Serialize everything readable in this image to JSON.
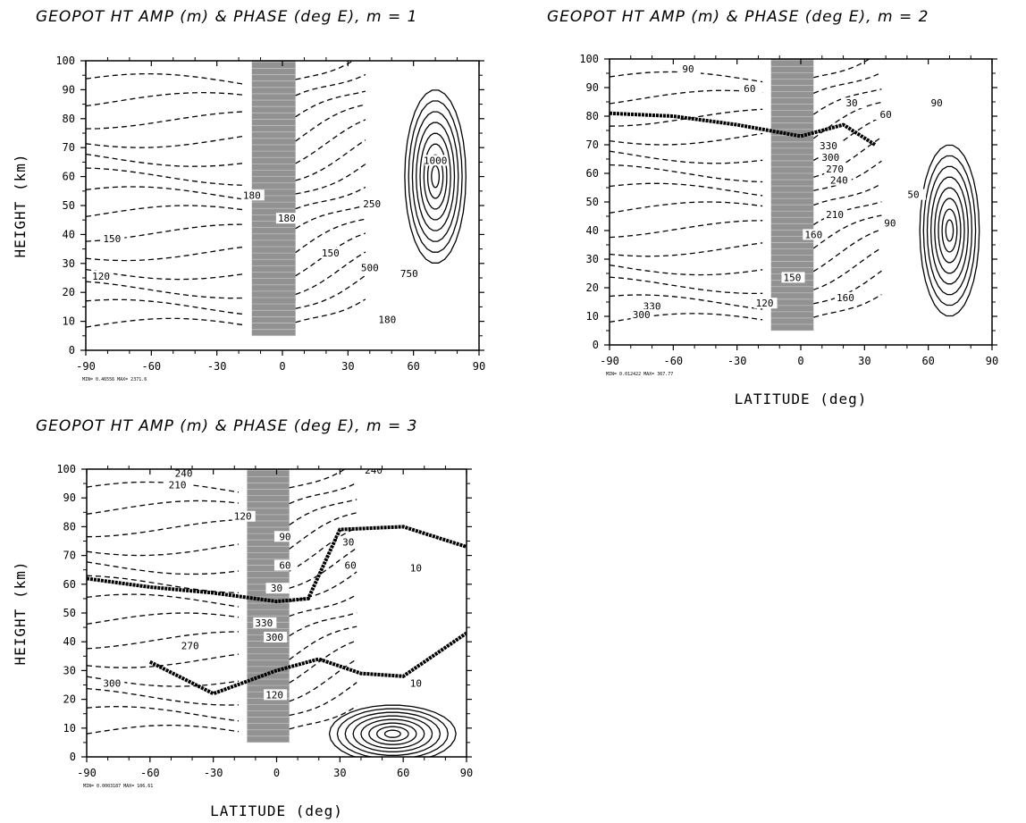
{
  "chart_data": [
    {
      "type": "contour",
      "title": "GEOPOT HT AMP (m) & PHASE (deg E), m = 1",
      "xlabel": "",
      "ylabel": "HEIGHT (km)",
      "xticks": [
        "-90",
        "-60",
        "-30",
        "0",
        "30",
        "60",
        "90"
      ],
      "yticks": [
        "0",
        "10",
        "20",
        "30",
        "40",
        "50",
        "60",
        "70",
        "80",
        "90",
        "100"
      ],
      "xlim": [
        -90,
        90
      ],
      "ylim": [
        0,
        100
      ],
      "minmax_note": "MIN= 0.46556 MAX= 2371.6",
      "contour_labels": [
        {
          "text": "180",
          "x": -14,
          "y": 53
        },
        {
          "text": "180",
          "x": 2,
          "y": 45
        },
        {
          "text": "150",
          "x": -78,
          "y": 38
        },
        {
          "text": "120",
          "x": -83,
          "y": 25
        },
        {
          "text": "150",
          "x": 22,
          "y": 33
        },
        {
          "text": "250",
          "x": 41,
          "y": 50
        },
        {
          "text": "500",
          "x": 40,
          "y": 28
        },
        {
          "text": "750",
          "x": 58,
          "y": 26
        },
        {
          "text": "1000",
          "x": 70,
          "y": 65
        },
        {
          "text": "180",
          "x": 48,
          "y": 10
        }
      ]
    },
    {
      "type": "contour",
      "title": "GEOPOT HT AMP (m) & PHASE (deg E), m = 2",
      "xlabel": "LATITUDE (deg)",
      "ylabel": "",
      "xticks": [
        "-90",
        "-60",
        "-30",
        "0",
        "30",
        "60",
        "90"
      ],
      "yticks": [
        "0",
        "10",
        "20",
        "30",
        "40",
        "50",
        "60",
        "70",
        "80",
        "90",
        "100"
      ],
      "xlim": [
        -90,
        90
      ],
      "ylim": [
        0,
        100
      ],
      "minmax_note": "MIN= 0.012422 MAX= 367.77",
      "contour_labels": [
        {
          "text": "90",
          "x": -53,
          "y": 96
        },
        {
          "text": "60",
          "x": -24,
          "y": 89
        },
        {
          "text": "30",
          "x": 24,
          "y": 84
        },
        {
          "text": "60",
          "x": 40,
          "y": 80
        },
        {
          "text": "90",
          "x": 64,
          "y": 84
        },
        {
          "text": "330",
          "x": 13,
          "y": 69
        },
        {
          "text": "300",
          "x": 14,
          "y": 65
        },
        {
          "text": "270",
          "x": 16,
          "y": 61
        },
        {
          "text": "240",
          "x": 18,
          "y": 57
        },
        {
          "text": "210",
          "x": 16,
          "y": 45
        },
        {
          "text": "160",
          "x": 6,
          "y": 38
        },
        {
          "text": "150",
          "x": -4,
          "y": 23
        },
        {
          "text": "120",
          "x": -17,
          "y": 14
        },
        {
          "text": "50",
          "x": 53,
          "y": 52
        },
        {
          "text": "90",
          "x": 42,
          "y": 42
        },
        {
          "text": "160",
          "x": 21,
          "y": 16
        },
        {
          "text": "330",
          "x": -70,
          "y": 13
        },
        {
          "text": "300",
          "x": -75,
          "y": 10
        }
      ]
    },
    {
      "type": "contour",
      "title": "GEOPOT HT AMP (m) & PHASE (deg E), m = 3",
      "xlabel": "LATITUDE (deg)",
      "ylabel": "HEIGHT (km)",
      "xticks": [
        "-90",
        "-60",
        "-30",
        "0",
        "30",
        "60",
        "90"
      ],
      "yticks": [
        "0",
        "10",
        "20",
        "30",
        "40",
        "50",
        "60",
        "70",
        "80",
        "90",
        "100"
      ],
      "xlim": [
        -90,
        90
      ],
      "ylim": [
        0,
        100
      ],
      "minmax_note": "MIN= 0.0003187 MAX= 106.61",
      "contour_labels": [
        {
          "text": "240",
          "x": -44,
          "y": 98
        },
        {
          "text": "210",
          "x": -47,
          "y": 94
        },
        {
          "text": "120",
          "x": -16,
          "y": 83
        },
        {
          "text": "90",
          "x": 4,
          "y": 76
        },
        {
          "text": "60",
          "x": 4,
          "y": 66
        },
        {
          "text": "30",
          "x": 0,
          "y": 58
        },
        {
          "text": "330",
          "x": -6,
          "y": 46
        },
        {
          "text": "300",
          "x": -1,
          "y": 41
        },
        {
          "text": "270",
          "x": -41,
          "y": 38
        },
        {
          "text": "300",
          "x": -78,
          "y": 25
        },
        {
          "text": "120",
          "x": -1,
          "y": 21
        },
        {
          "text": "240",
          "x": 46,
          "y": 99
        },
        {
          "text": "30",
          "x": 34,
          "y": 74
        },
        {
          "text": "60",
          "x": 35,
          "y": 66
        },
        {
          "text": "10",
          "x": 66,
          "y": 65
        },
        {
          "text": "10",
          "x": 66,
          "y": 25
        }
      ]
    }
  ]
}
